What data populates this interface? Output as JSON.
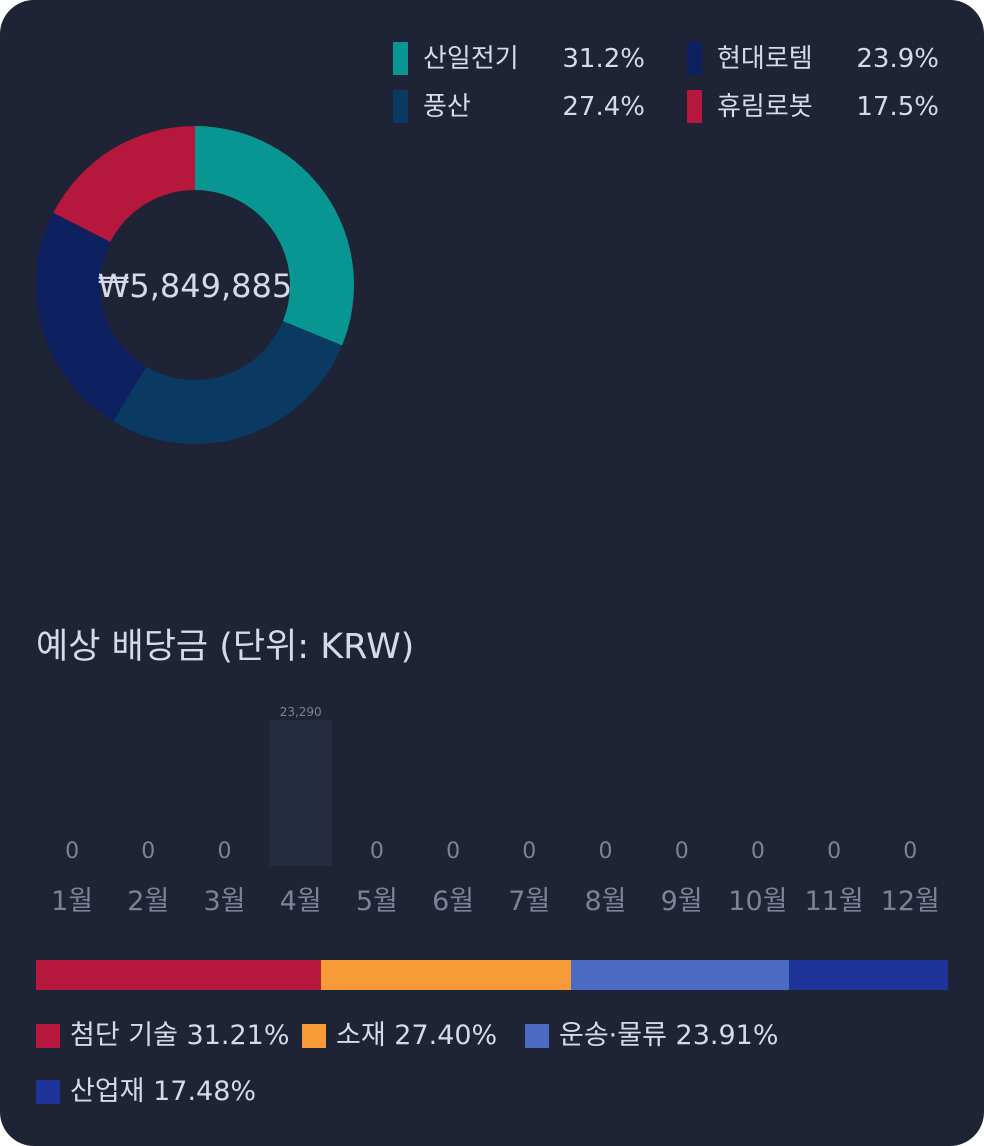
{
  "donut": {
    "center_label": "₩5,849,885",
    "colors": {
      "track": "#1f2336"
    }
  },
  "top_legend": [
    {
      "name": "산일전기",
      "pct_label": "31.2%",
      "color": "#079692"
    },
    {
      "name": "현대로템",
      "pct_label": "23.9%",
      "color": "#0d2160"
    },
    {
      "name": "풍산",
      "pct_label": "27.4%",
      "color": "#0a3a62"
    },
    {
      "name": "휴림로봇",
      "pct_label": "17.5%",
      "color": "#b5173d"
    }
  ],
  "section_title": "예상 배당금 (단위: KRW)",
  "bottom_legend": [
    {
      "label": "첨단 기술 31.21%",
      "color": "#b5173d"
    },
    {
      "label": "소재 27.40%",
      "color": "#f99a38"
    },
    {
      "label": "운송·물류 23.91%",
      "color": "#4b6ac2"
    },
    {
      "label": "산업재 17.48%",
      "color": "#1f349b"
    }
  ],
  "chart_data": [
    {
      "type": "pie",
      "categories": [
        "산일전기",
        "풍산",
        "현대로템",
        "휴림로봇"
      ],
      "values": [
        31.2,
        27.4,
        23.9,
        17.5
      ],
      "colors": [
        "#079692",
        "#0a3a62",
        "#0d2160",
        "#b5173d"
      ],
      "center_label": "₩5,849,885",
      "legend": "top-right"
    },
    {
      "type": "bar",
      "title": "예상 배당금 (단위: KRW)",
      "categories": [
        "1월",
        "2월",
        "3월",
        "4월",
        "5월",
        "6월",
        "7월",
        "8월",
        "9월",
        "10월",
        "11월",
        "12월"
      ],
      "values": [
        0,
        0,
        0,
        23290,
        0,
        0,
        0,
        0,
        0,
        0,
        0,
        0
      ],
      "value_labels": [
        "0",
        "0",
        "0",
        "23,290",
        "0",
        "0",
        "0",
        "0",
        "0",
        "0",
        "0",
        "0"
      ],
      "bar_color": "#262c40",
      "grid": false
    },
    {
      "type": "bar",
      "stacked": true,
      "orientation": "horizontal",
      "categories": [
        "첨단 기술",
        "소재",
        "운송·물류",
        "산업재"
      ],
      "values": [
        31.21,
        27.4,
        23.91,
        17.48
      ],
      "colors": [
        "#b5173d",
        "#f99a38",
        "#4b6ac2",
        "#1f349b"
      ],
      "legend": "bottom"
    }
  ]
}
